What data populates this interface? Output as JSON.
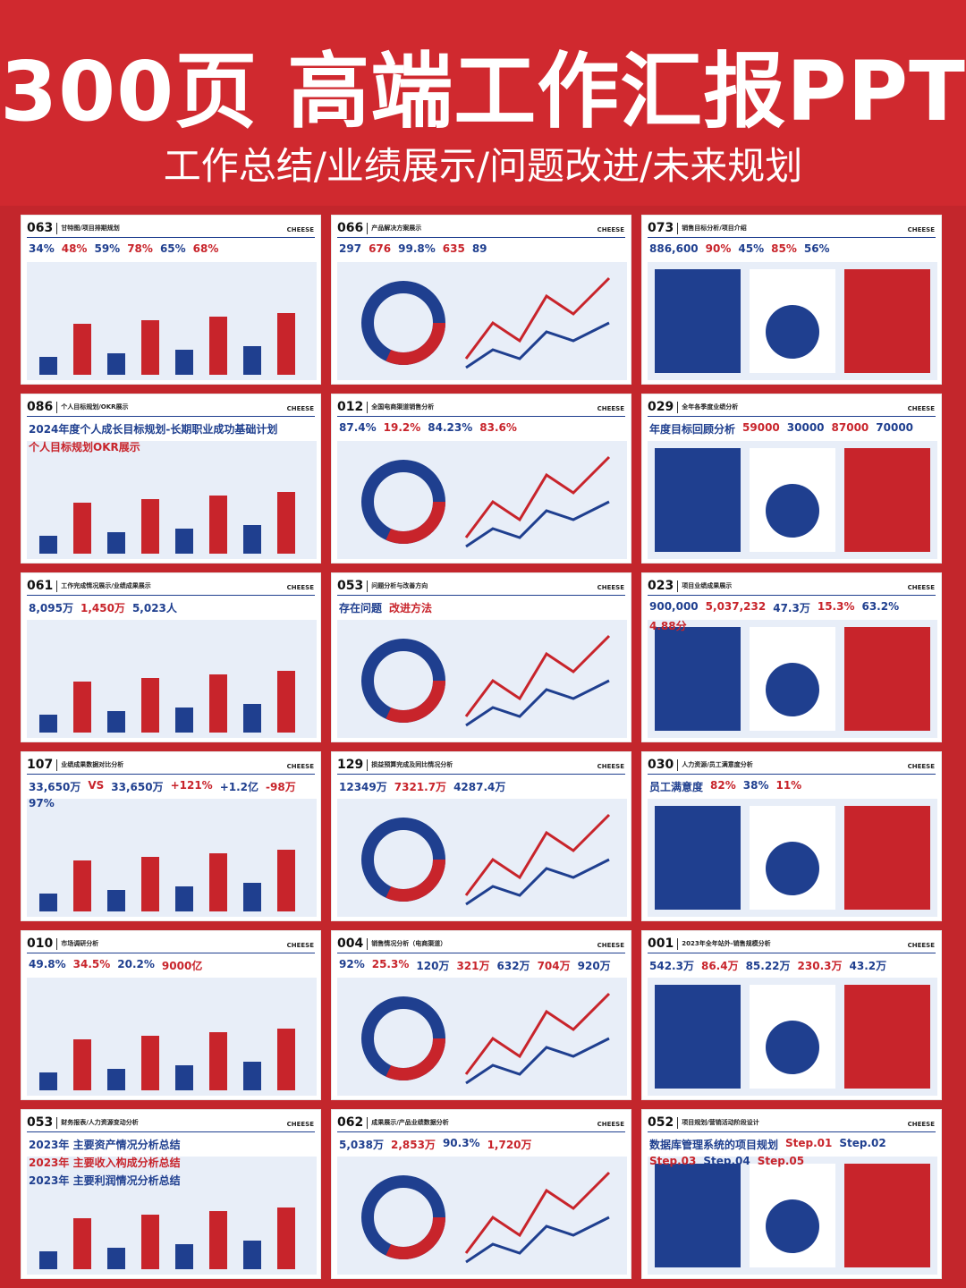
{
  "header": {
    "title": "300页 高端工作汇报PPT",
    "subtitle": "工作总结/业绩展示/问题改进/未来规划"
  },
  "brand": "CHEESE",
  "slides": [
    {
      "code": "063",
      "title": "甘特图/项目排期规划",
      "highlights": [
        "34%",
        "48%",
        "59%",
        "78%",
        "65%",
        "68%"
      ]
    },
    {
      "code": "066",
      "title": "产品解决方案展示",
      "highlights": [
        "297",
        "676",
        "99.8%",
        "635",
        "89"
      ]
    },
    {
      "code": "073",
      "title": "销售目标分析/项目介绍",
      "highlights": [
        "886,600",
        "90%",
        "45%",
        "85%",
        "56%"
      ]
    },
    {
      "code": "086",
      "title": "个人目标规划/OKR展示",
      "highlights": [
        "2024年度个人成长目标规划-长期职业成功基础计划",
        "个人目标规划OKR展示"
      ]
    },
    {
      "code": "012",
      "title": "全国电商渠道销售分析",
      "highlights": [
        "87.4%",
        "19.2%",
        "84.23%",
        "83.6%"
      ]
    },
    {
      "code": "029",
      "title": "全年各季度业绩分析",
      "highlights": [
        "年度目标回顾分析",
        "59000",
        "30000",
        "87000",
        "70000"
      ]
    },
    {
      "code": "061",
      "title": "工作完成情况展示/业绩成果展示",
      "highlights": [
        "8,095万",
        "1,450万",
        "5,023人"
      ]
    },
    {
      "code": "053",
      "title": "问题分析与改善方向",
      "highlights": [
        "存在问题",
        "改进方法"
      ]
    },
    {
      "code": "023",
      "title": "项目业绩成果展示",
      "highlights": [
        "900,000",
        "5,037,232",
        "47.3万",
        "15.3%",
        "63.2%",
        "4.88分"
      ]
    },
    {
      "code": "107",
      "title": "业绩成果数据对比分析",
      "highlights": [
        "33,650万",
        "VS",
        "33,650万",
        "+121%",
        "+1.2亿",
        "-98万",
        "97%"
      ]
    },
    {
      "code": "129",
      "title": "损益预算完成及同比情况分析",
      "highlights": [
        "12349万",
        "7321.7万",
        "4287.4万"
      ]
    },
    {
      "code": "030",
      "title": "人力资源/员工满意度分析",
      "highlights": [
        "员工满意度",
        "82%",
        "38%",
        "11%"
      ]
    },
    {
      "code": "010",
      "title": "市场调研分析",
      "highlights": [
        "49.8%",
        "34.5%",
        "20.2%",
        "9000亿"
      ]
    },
    {
      "code": "004",
      "title": "销售情况分析（电商渠道）",
      "highlights": [
        "92%",
        "25.3%",
        "120万",
        "321万",
        "632万",
        "704万",
        "920万"
      ]
    },
    {
      "code": "001",
      "title": "2023年全年站外-销售规模分析",
      "highlights": [
        "542.3万",
        "86.4万",
        "85.22万",
        "230.3万",
        "43.2万"
      ]
    },
    {
      "code": "053",
      "title": "财务报表/人力资源变动分析",
      "highlights": [
        "2023年 主要资产情况分析总结",
        "2023年 主要收入构成分析总结",
        "2023年 主要利润情况分析总结"
      ]
    },
    {
      "code": "062",
      "title": "成果展示/产品业绩数据分析",
      "highlights": [
        "5,038万",
        "2,853万",
        "90.3%",
        "1,720万"
      ]
    },
    {
      "code": "052",
      "title": "项目规划/营销活动阶段设计",
      "highlights": [
        "数据库管理系统的项目规划",
        "Step.01",
        "Step.02",
        "Step.03",
        "Step.04",
        "Step.05"
      ]
    }
  ]
}
